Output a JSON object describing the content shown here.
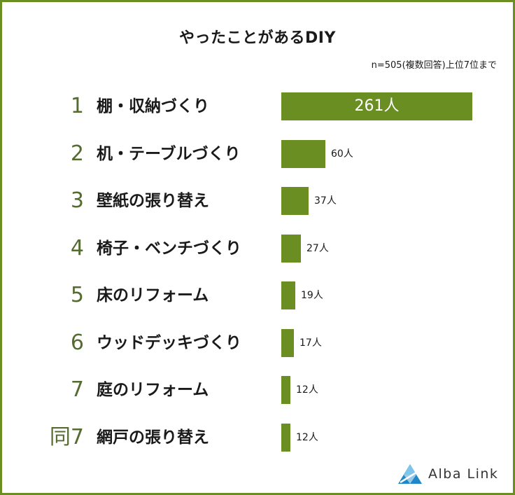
{
  "header": {
    "title": "やったことがあるDIY",
    "note": "n=505(複数回答)上位7位まで"
  },
  "chart_data": {
    "type": "bar",
    "orientation": "horizontal",
    "title": "やったことがあるDIY",
    "categories": [
      "棚・収納づくり",
      "机・テーブルづくり",
      "壁紙の張り替え",
      "椅子・ベンチづくり",
      "床のリフォーム",
      "ウッドデッキづくり",
      "庭のリフォーム",
      "網戸の張り替え"
    ],
    "ranks": [
      "1",
      "2",
      "3",
      "4",
      "5",
      "6",
      "7",
      "同7"
    ],
    "values": [
      261,
      60,
      37,
      27,
      19,
      17,
      12,
      12
    ],
    "value_labels": [
      "261人",
      "60人",
      "37人",
      "27人",
      "19人",
      "17人",
      "12人",
      "12人"
    ],
    "unit": "人",
    "xlim": [
      0,
      261
    ]
  },
  "colors": {
    "bar": "#6b8e23",
    "rank": "#556b2f",
    "frame": "#6b8e23"
  },
  "logo": {
    "text": "Alba Link",
    "icon": "alba-link-triangle-icon"
  }
}
